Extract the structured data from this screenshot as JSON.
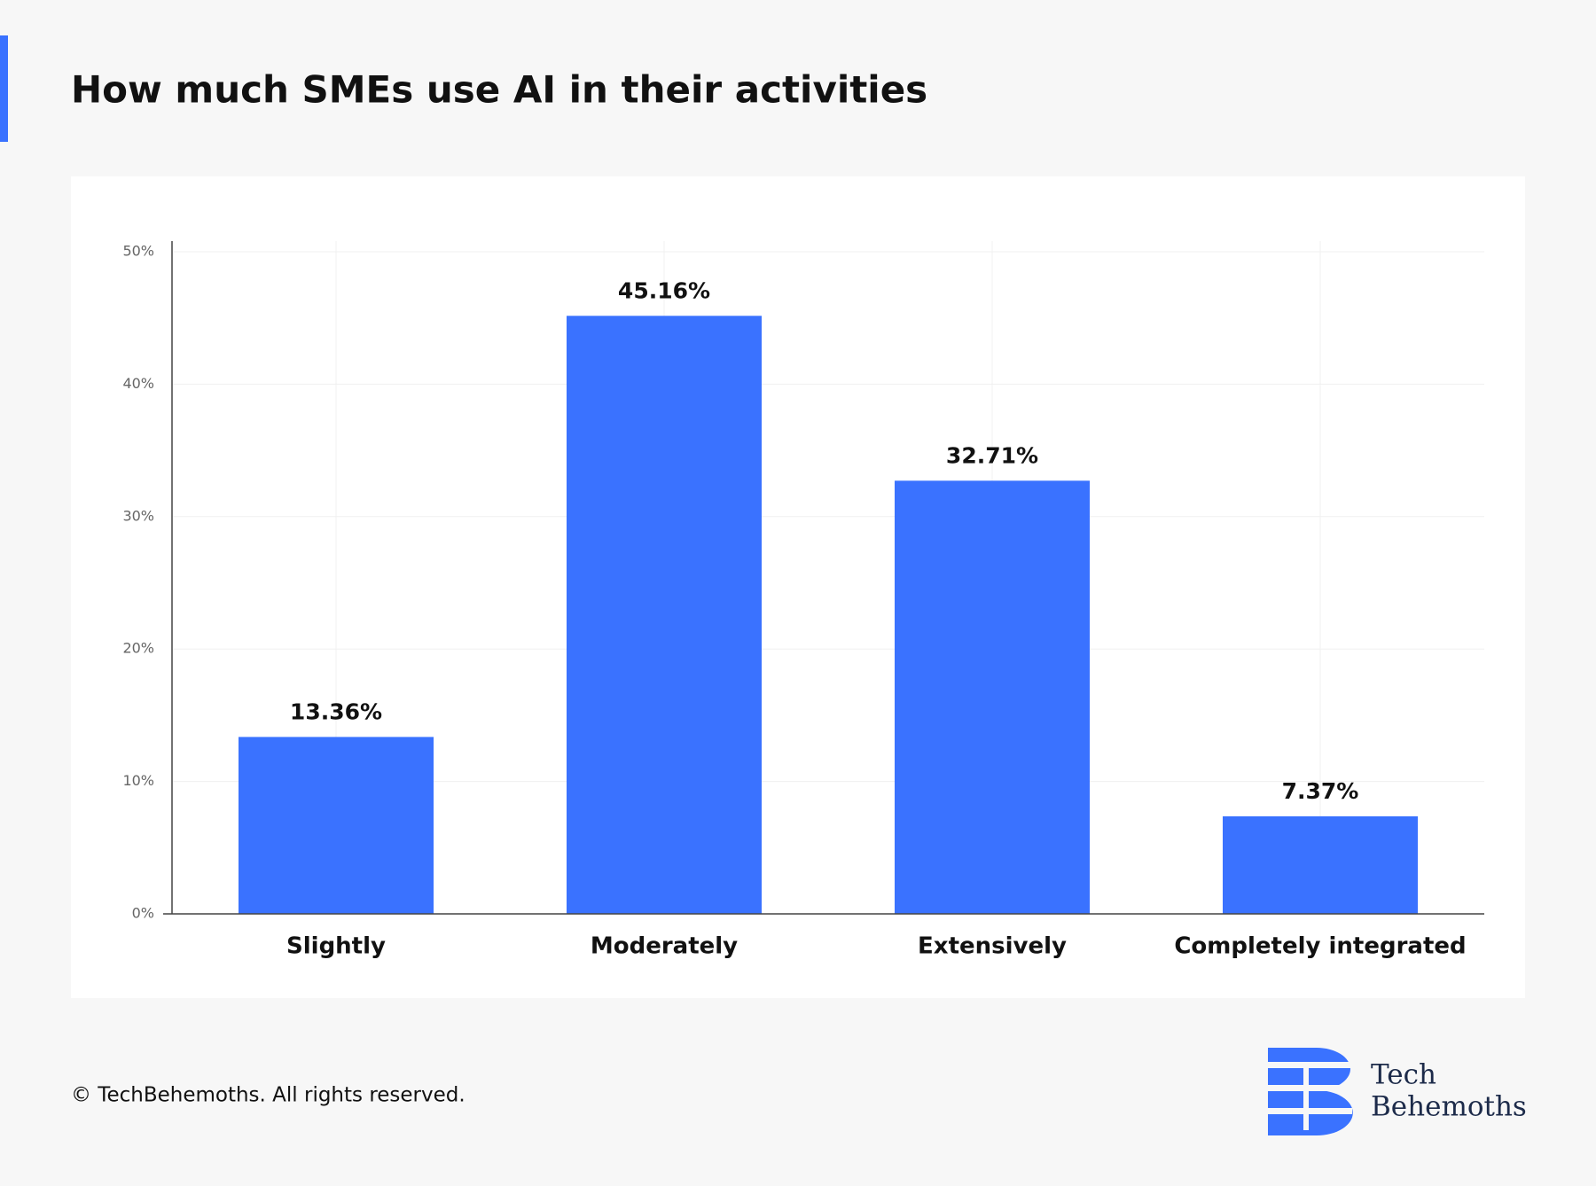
{
  "chart_data": {
    "type": "bar",
    "title": "How much SMEs use AI in their activities",
    "categories": [
      "Slightly",
      "Moderately",
      "Extensively",
      "Completely integrated"
    ],
    "values": [
      13.36,
      45.16,
      32.71,
      7.37
    ],
    "value_labels": [
      "13.36%",
      "45.16%",
      "32.71%",
      "7.37%"
    ],
    "color": "#3a72ff",
    "ylim": [
      0,
      50
    ],
    "yticks": [
      {
        "value": 0,
        "label": "0%"
      },
      {
        "value": 10,
        "label": "10%"
      },
      {
        "value": 20,
        "label": "20%"
      },
      {
        "value": 30,
        "label": "30%"
      },
      {
        "value": 40,
        "label": "40%"
      },
      {
        "value": 50,
        "label": "50%"
      }
    ],
    "grid": true
  },
  "footer": "© TechBehemoths. All rights reserved.",
  "logo": [
    "Tech",
    "Behemoths"
  ]
}
